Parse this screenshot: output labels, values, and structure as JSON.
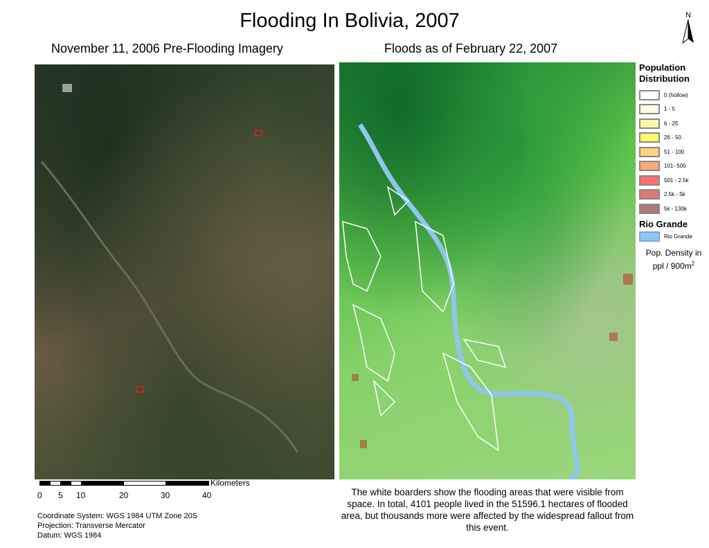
{
  "title": "Flooding In Bolivia, 2007",
  "left_map": {
    "subtitle": "November 11, 2006 Pre-Flooding Imagery"
  },
  "right_map": {
    "subtitle": "Floods as of February 22, 2007"
  },
  "north_arrow": {
    "label": "N"
  },
  "legend": {
    "population_title": "Population Distribution",
    "classes": [
      {
        "label": "0 (hollow)",
        "color": "#ffffff"
      },
      {
        "label": "1 - 5",
        "color": "#fffbdc"
      },
      {
        "label": "6 - 25",
        "color": "#fff7a8"
      },
      {
        "label": "26 - 50",
        "color": "#ffff66"
      },
      {
        "label": "51 - 100",
        "color": "#ffd27a"
      },
      {
        "label": "101- 500",
        "color": "#ffa878"
      },
      {
        "label": "501 - 2.5k",
        "color": "#ff7070"
      },
      {
        "label": "2.5k - 5k",
        "color": "#e07878"
      },
      {
        "label": "5k - 130k",
        "color": "#b07878"
      }
    ],
    "river_title": "Rio Grande",
    "river_label": "Rio Grande",
    "river_color": "#8ec6f0",
    "density_line1": "Pop. Density in",
    "density_line2": "ppl / 900m",
    "density_sup": "2"
  },
  "scale_bar": {
    "unit": "Kilometers",
    "ticks": [
      "0",
      "5",
      "10",
      "20",
      "30",
      "40"
    ]
  },
  "coordinates": [
    "Coordinate System: WGS 1984 UTM Zone 20S",
    "Projection: Transverse Mercator",
    "Datum: WGS 1984"
  ],
  "note": "The white boarders show the flooding areas that were visible from space. In total, 4101 people lived in the 51596.1 hectares of flooded area, but thousands more were affected by the widespread fallout from this event."
}
